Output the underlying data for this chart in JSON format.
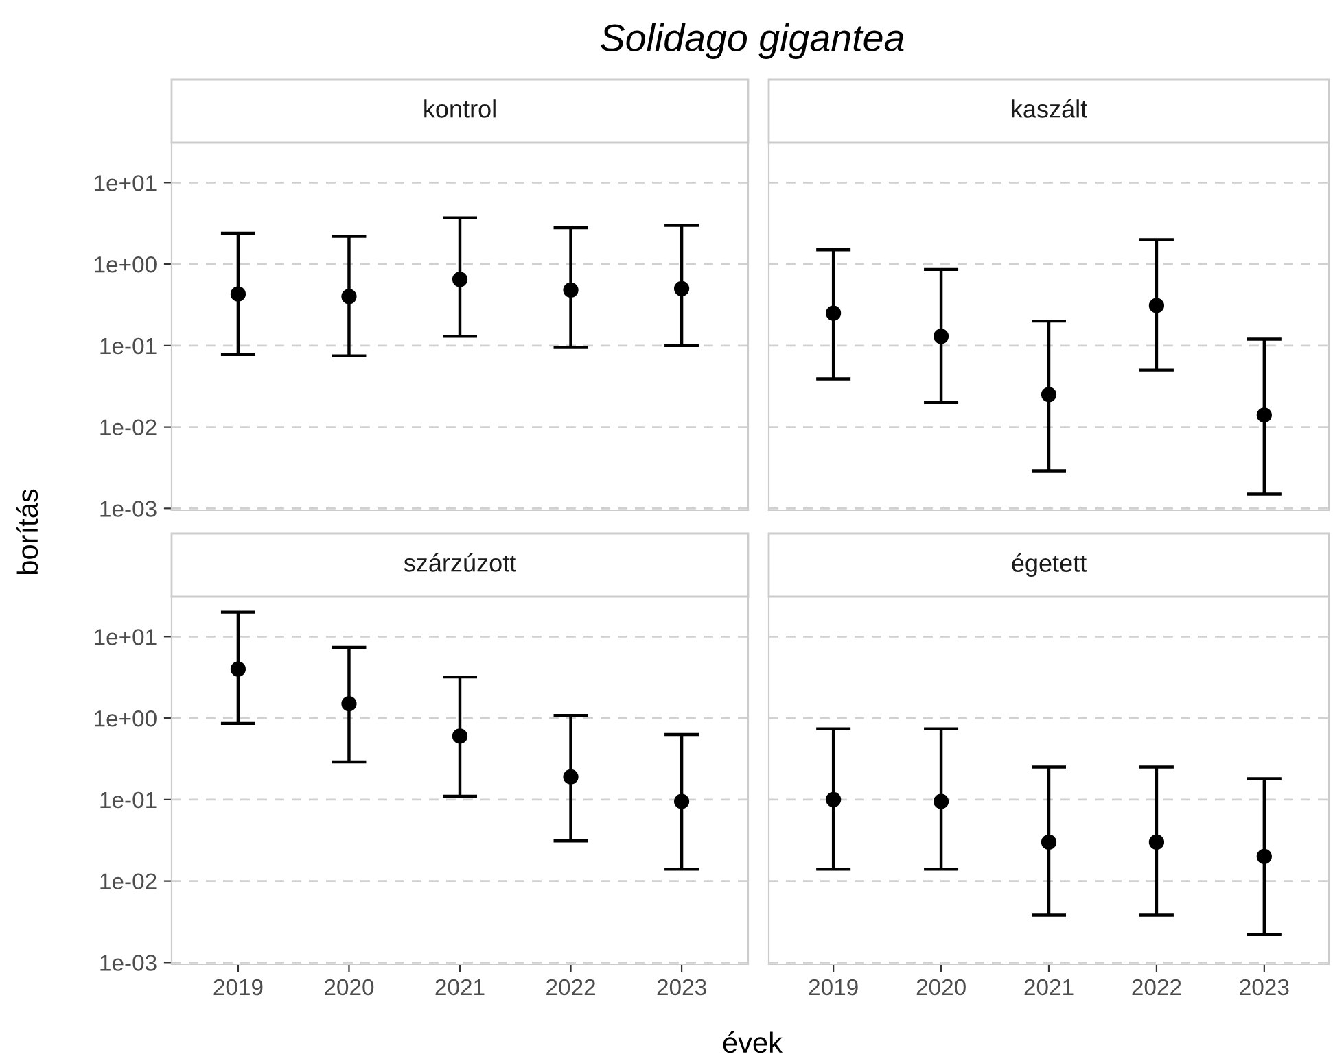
{
  "chart_data": [
    {
      "type": "scatter",
      "title": "kontrol",
      "annotations": [
        "Solidago gigantea"
      ],
      "ylabel": "borítás",
      "categories": [
        "2019",
        "2020",
        "2021",
        "2022",
        "2023"
      ],
      "series": [
        {
          "color": "#000000",
          "values": [
            0.43,
            0.4,
            0.65,
            0.48,
            0.5
          ],
          "errors": [
            [
              0.078,
              2.4
            ],
            [
              0.075,
              2.2
            ],
            [
              0.13,
              3.7
            ],
            [
              0.095,
              2.8
            ],
            [
              0.1,
              3.0
            ]
          ]
        }
      ],
      "log": "y",
      "ylim": [
        0.00095,
        31
      ],
      "yticks": [
        {
          "value": 10,
          "label": "1e+01"
        },
        {
          "value": 1,
          "label": "1e+00"
        },
        {
          "value": 0.1,
          "label": "1e-01"
        },
        {
          "value": 0.01,
          "label": "1e-02"
        },
        {
          "value": 0.001,
          "label": "1e-03"
        }
      ],
      "grid": "y",
      "marker": "circle",
      "tick_labels": "y"
    },
    {
      "type": "scatter",
      "title": "kaszált",
      "categories": [
        "2019",
        "2020",
        "2021",
        "2022",
        "2023"
      ],
      "series": [
        {
          "color": "#000000",
          "values": [
            0.25,
            0.13,
            0.025,
            0.31,
            0.014
          ],
          "errors": [
            [
              0.039,
              1.5
            ],
            [
              0.02,
              0.86
            ],
            [
              0.0029,
              0.2
            ],
            [
              0.05,
              2.0
            ],
            [
              0.0015,
              0.12
            ]
          ]
        }
      ],
      "log": "y",
      "ylim": [
        0.00095,
        31
      ],
      "yticks": [
        {
          "value": 10,
          "label": null
        },
        {
          "value": 1,
          "label": null
        },
        {
          "value": 0.1,
          "label": null
        },
        {
          "value": 0.01,
          "label": null
        },
        {
          "value": 0.001,
          "label": null
        }
      ],
      "grid": "y",
      "marker": "circle",
      "tick_labels": false
    },
    {
      "type": "scatter",
      "title": "szárzúzott",
      "xlabel": "évek",
      "categories": [
        "2019",
        "2020",
        "2021",
        "2022",
        "2023"
      ],
      "series": [
        {
          "color": "#000000",
          "values": [
            4.0,
            1.5,
            0.6,
            0.19,
            0.095
          ],
          "errors": [
            [
              0.86,
              20
            ],
            [
              0.29,
              7.4
            ],
            [
              0.11,
              3.2
            ],
            [
              0.031,
              1.08
            ],
            [
              0.014,
              0.63
            ]
          ]
        }
      ],
      "log": "y",
      "ylim": [
        0.00095,
        31
      ],
      "yticks": [
        {
          "value": 10,
          "label": "1e+01"
        },
        {
          "value": 1,
          "label": "1e+00"
        },
        {
          "value": 0.1,
          "label": "1e-01"
        },
        {
          "value": 0.01,
          "label": "1e-02"
        },
        {
          "value": 0.001,
          "label": "1e-03"
        }
      ],
      "grid": "y",
      "marker": "circle"
    },
    {
      "type": "scatter",
      "title": "égetett",
      "categories": [
        "2019",
        "2020",
        "2021",
        "2022",
        "2023"
      ],
      "series": [
        {
          "color": "#000000",
          "values": [
            0.1,
            0.095,
            0.03,
            0.03,
            0.02
          ],
          "errors": [
            [
              0.014,
              0.74
            ],
            [
              0.014,
              0.74
            ],
            [
              0.0038,
              0.25
            ],
            [
              0.0038,
              0.25
            ],
            [
              0.0022,
              0.18
            ]
          ]
        }
      ],
      "log": "y",
      "ylim": [
        0.00095,
        31
      ],
      "yticks": [
        {
          "value": 10,
          "label": null
        },
        {
          "value": 1,
          "label": null
        },
        {
          "value": 0.1,
          "label": null
        },
        {
          "value": 0.01,
          "label": null
        },
        {
          "value": 0.001,
          "label": null
        }
      ],
      "grid": "y",
      "marker": "circle",
      "tick_labels": "x"
    }
  ]
}
